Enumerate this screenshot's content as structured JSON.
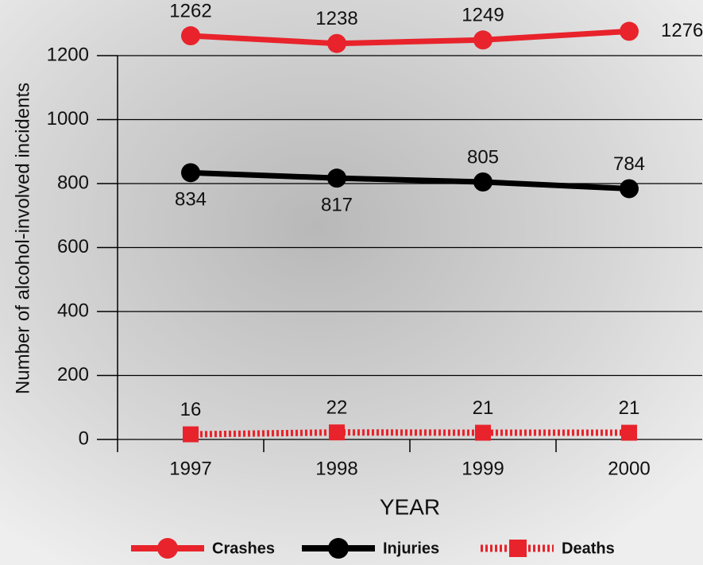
{
  "chart_data": {
    "type": "line",
    "y_label": "Number of alcohol-involved incidents",
    "x_label": "YEAR",
    "categories": [
      "1997",
      "1998",
      "1999",
      "2000"
    ],
    "series": [
      {
        "name": "Crashes",
        "color": "#e8232b",
        "style": "solid",
        "marker": "circle",
        "values": [
          1262,
          1238,
          1249,
          1276
        ]
      },
      {
        "name": "Injuries",
        "color": "#000000",
        "style": "solid",
        "marker": "circle",
        "values": [
          834,
          817,
          805,
          784
        ]
      },
      {
        "name": "Deaths",
        "color": "#e8232b",
        "style": "dotted",
        "marker": "square",
        "values": [
          16,
          22,
          21,
          21
        ]
      }
    ],
    "ylim": [
      0,
      1200
    ],
    "yticks": [
      0,
      200,
      400,
      600,
      800,
      1000,
      1200
    ],
    "grid": true
  }
}
